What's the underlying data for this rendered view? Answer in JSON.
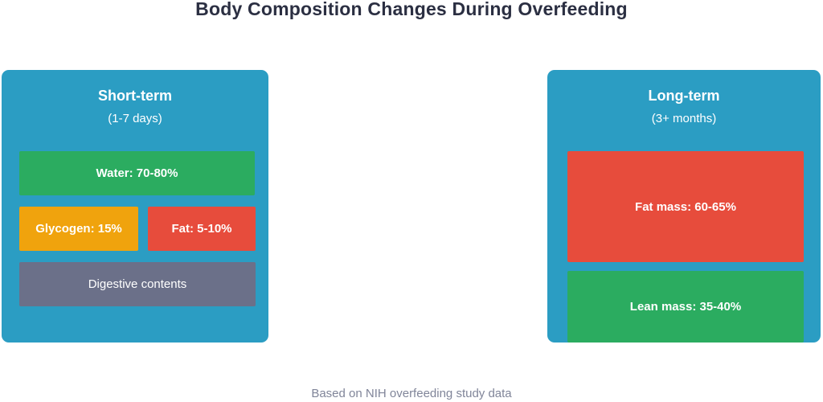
{
  "title": "Body Composition Changes During Overfeeding",
  "footer_note": "Based on NIH overfeeding study data",
  "colors": {
    "panel_bg": "#2B9DC3",
    "green": "#2BAC60",
    "orange": "#F0A30D",
    "red": "#E74C3C",
    "slate": "#6B7089",
    "title_text": "#2B2F42",
    "footer_text": "#808599",
    "box_text": "#FFFFFF"
  },
  "panels": {
    "short_term": {
      "heading": "Short-term",
      "subheading": "(1-7 days)",
      "boxes": {
        "water": {
          "label": "Water: 70-80%"
        },
        "glycogen": {
          "label": "Glycogen: 15%"
        },
        "fat": {
          "label": "Fat: 5-10%"
        },
        "digestive": {
          "label": "Digestive contents"
        }
      }
    },
    "long_term": {
      "heading": "Long-term",
      "subheading": "(3+ months)",
      "boxes": {
        "fat_mass": {
          "label": "Fat mass: 60-65%"
        },
        "lean_mass": {
          "label": "Lean mass: 35-40%"
        }
      }
    }
  }
}
